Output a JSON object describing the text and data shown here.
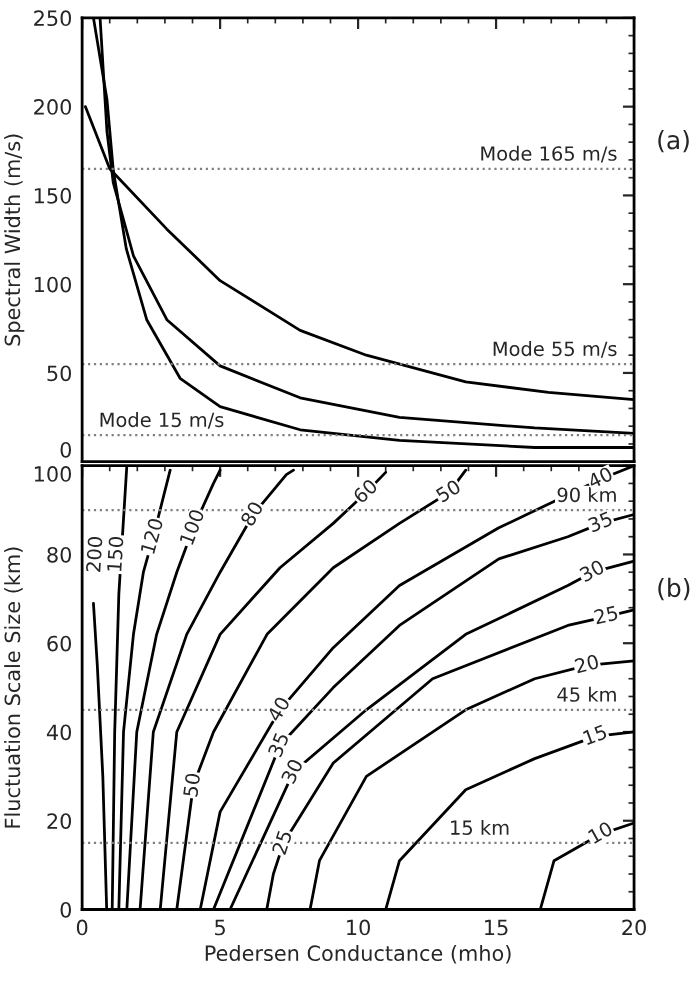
{
  "chart_data": [
    {
      "type": "line",
      "ylabel": "Spectral Width (m/s)",
      "xlim": [
        0,
        20
      ],
      "ylim": [
        0,
        250
      ],
      "xticks": [
        0,
        5,
        10,
        15,
        20
      ],
      "yticks": [
        0,
        50,
        100,
        150,
        200,
        250
      ],
      "tick_labels": "y",
      "series": [
        {
          "color": "#000000",
          "x": [
            0.12,
            1.0,
            3.07,
            5.0,
            7.9,
            10.3,
            13.9,
            16.9,
            20
          ],
          "values": [
            200,
            165,
            131,
            102,
            74,
            60,
            45,
            39,
            35
          ]
        },
        {
          "color": "#000000",
          "x": [
            0.65,
            0.9,
            1.13,
            1.86,
            3.07,
            5.0,
            7.9,
            11.5,
            16.4,
            20
          ],
          "values": [
            250,
            186,
            157,
            116,
            80,
            54,
            36,
            25,
            19,
            16
          ]
        },
        {
          "color": "#000000",
          "x": [
            0.41,
            0.9,
            1.13,
            1.6,
            2.34,
            3.55,
            5.0,
            7.9,
            11.5,
            16.4,
            20
          ],
          "values": [
            250,
            204,
            164,
            120,
            80,
            47,
            31,
            18,
            12,
            8,
            8
          ]
        }
      ],
      "ref_lines": [
        {
          "axis": "y",
          "value": 165,
          "label": "Mode 165 m/s",
          "color": "#808080",
          "line_style": "dotted"
        },
        {
          "axis": "y",
          "value": 55,
          "label": "Mode 55 m/s",
          "color": "#808080",
          "line_style": "dotted"
        },
        {
          "axis": "y",
          "value": 15,
          "label": "Mode 15 m/s",
          "color": "#808080",
          "line_style": "dotted"
        }
      ],
      "annotations": [
        "(a)"
      ]
    },
    {
      "type": "line",
      "xlabel": "Pedersen Conductance (mho)",
      "ylabel": "Fluctuation Scale Size (km)",
      "xlim": [
        0,
        20
      ],
      "ylim": [
        0,
        100
      ],
      "xticks": [
        0,
        5,
        10,
        15,
        20
      ],
      "yticks": [
        0,
        20,
        40,
        60,
        80,
        100
      ],
      "series": [
        {
          "color": "#000000",
          "x": [
            0.89,
            0.75,
            0.55,
            0.41
          ],
          "values": [
            0,
            30,
            55,
            69
          ]
        },
        {
          "color": "#000000",
          "x": [
            1.09,
            1.18,
            1.33,
            1.5,
            1.62
          ],
          "values": [
            0,
            40,
            71,
            88,
            100
          ]
        },
        {
          "color": "#000000",
          "x": [
            1.33,
            1.5,
            1.86,
            2.22,
            2.58,
            3.19
          ],
          "values": [
            0,
            40,
            62,
            76,
            84,
            99
          ]
        },
        {
          "color": "#000000",
          "x": [
            1.62,
            1.98,
            2.7,
            3.43,
            4.03,
            4.76,
            5.0
          ],
          "values": [
            0,
            40,
            62,
            76,
            86,
            96,
            99
          ]
        },
        {
          "color": "#000000",
          "x": [
            2.1,
            2.58,
            3.79,
            5.0,
            6.2,
            7.4,
            7.66
          ],
          "values": [
            0,
            40,
            62,
            76,
            89,
            98,
            99
          ]
        },
        {
          "color": "#000000",
          "x": [
            2.83,
            3.43,
            5.0,
            7.17,
            9.1,
            10.3,
            11.0
          ],
          "values": [
            0,
            40,
            62,
            77,
            87,
            94,
            98.5
          ]
        },
        {
          "color": "#000000",
          "x": [
            3.43,
            4.03,
            4.76,
            6.7,
            9.1,
            11.5,
            13.3,
            13.9
          ],
          "values": [
            0,
            28,
            40,
            62,
            77,
            87,
            94,
            99
          ]
        },
        {
          "color": "#000000",
          "x": [
            4.28,
            5.0,
            7.17,
            9.1,
            11.5,
            15.1,
            18.8,
            20
          ],
          "values": [
            0,
            22,
            45,
            59,
            73,
            86,
            97,
            100
          ]
        },
        {
          "color": "#000000",
          "x": [
            4.76,
            7.17,
            9.1,
            11.5,
            15.1,
            17.6,
            18.8,
            20
          ],
          "values": [
            0,
            37,
            50,
            64,
            79,
            84,
            87,
            89
          ]
        },
        {
          "color": "#000000",
          "x": [
            5.36,
            7.66,
            10.3,
            13.9,
            17.6,
            18.5,
            20
          ],
          "values": [
            0,
            31,
            45,
            62,
            73,
            76,
            78.5
          ]
        },
        {
          "color": "#000000",
          "x": [
            6.69,
            6.93,
            7.3,
            9.1,
            12.7,
            17.6,
            19.0,
            20
          ],
          "values": [
            0,
            8,
            15,
            33,
            52,
            64,
            66,
            67.5
          ]
        },
        {
          "color": "#000000",
          "x": [
            8.26,
            8.6,
            10.3,
            13.9,
            16.4,
            18.3,
            20
          ],
          "values": [
            0,
            11,
            30,
            45,
            52,
            55,
            56
          ]
        },
        {
          "color": "#000000",
          "x": [
            11.0,
            11.5,
            13.9,
            16.4,
            18.6,
            20
          ],
          "values": [
            0,
            11,
            27,
            34,
            39,
            40
          ]
        },
        {
          "color": "#000000",
          "x": [
            16.6,
            17.1,
            18.8,
            20
          ],
          "values": [
            0,
            11,
            17,
            19.5
          ]
        }
      ],
      "ref_lines": [
        {
          "axis": "y",
          "value": 90,
          "label": "90 km",
          "color": "#808080",
          "line_style": "dotted"
        },
        {
          "axis": "y",
          "value": 45,
          "label": "45 km",
          "color": "#808080",
          "line_style": "dotted"
        },
        {
          "axis": "y",
          "value": 15,
          "label": "15 km",
          "color": "#808080",
          "line_style": "dotted"
        }
      ],
      "annotations": [
        "(b)",
        {
          "text": "200",
          "x": 0.5,
          "y": 80
        },
        {
          "text": "150",
          "x": 1.26,
          "y": 80
        },
        {
          "text": "120",
          "x": 2.58,
          "y": 84
        },
        {
          "text": "100",
          "x": 4.03,
          "y": 86
        },
        {
          "text": "80",
          "x": 6.2,
          "y": 89
        },
        {
          "text": "60",
          "x": 10.3,
          "y": 94
        },
        {
          "text": "50",
          "x": 13.3,
          "y": 94
        },
        {
          "text": "40",
          "x": 18.8,
          "y": 97
        },
        {
          "text": "35",
          "x": 18.8,
          "y": 87
        },
        {
          "text": "30",
          "x": 18.5,
          "y": 76
        },
        {
          "text": "25",
          "x": 19.0,
          "y": 66
        },
        {
          "text": "20",
          "x": 18.3,
          "y": 55
        },
        {
          "text": "15",
          "x": 18.6,
          "y": 39
        },
        {
          "text": "10",
          "x": 18.8,
          "y": 17
        },
        {
          "text": "50",
          "x": 4.03,
          "y": 28
        },
        {
          "text": "40",
          "x": 7.17,
          "y": 45
        },
        {
          "text": "35",
          "x": 7.17,
          "y": 37
        },
        {
          "text": "30",
          "x": 7.66,
          "y": 31
        },
        {
          "text": "25",
          "x": 7.3,
          "y": 15
        }
      ]
    }
  ]
}
